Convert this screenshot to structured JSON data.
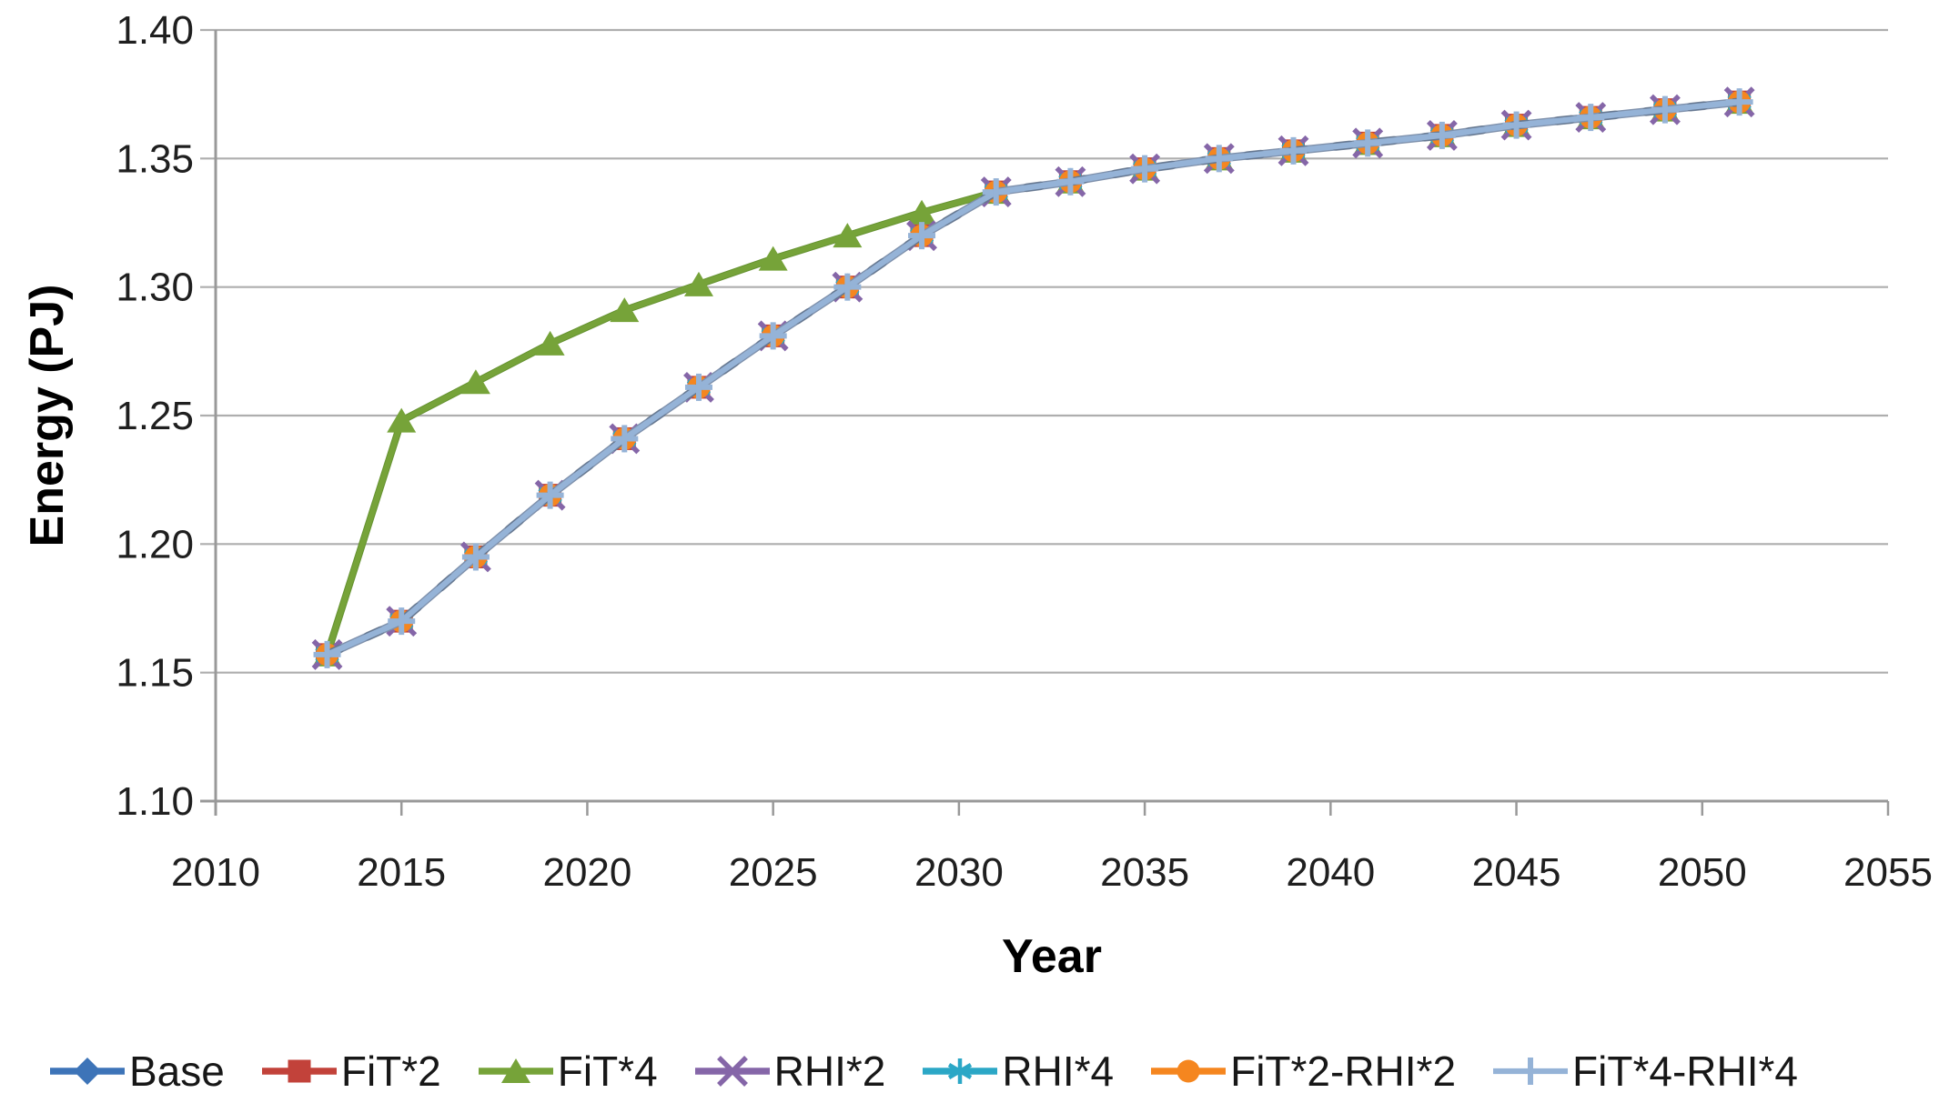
{
  "background": "#ffffff",
  "axis_style": {
    "axis_color": "#999999",
    "grid_color": "#aeaeae",
    "tick_label_color": "#1f1f1f"
  },
  "chart_data": {
    "type": "line",
    "title": "",
    "xlabel": "Year",
    "ylabel": "Energy (PJ)",
    "xlim": [
      2010,
      2055
    ],
    "ylim": [
      1.1,
      1.4
    ],
    "x_ticks": [
      2010,
      2015,
      2020,
      2025,
      2030,
      2035,
      2040,
      2045,
      2050,
      2055
    ],
    "y_ticks": [
      1.1,
      1.15,
      1.2,
      1.25,
      1.3,
      1.35,
      1.4
    ],
    "y_tick_decimals": 2,
    "grid": "horizontal",
    "legend_position": "bottom",
    "x": [
      2013,
      2015,
      2017,
      2019,
      2021,
      2023,
      2025,
      2027,
      2029,
      2031,
      2033,
      2035,
      2037,
      2039,
      2041,
      2043,
      2045,
      2047,
      2049,
      2051
    ],
    "series": [
      {
        "name": "Base",
        "color": "#3d74b8",
        "marker": "diamond",
        "values": [
          1.157,
          1.17,
          1.195,
          1.219,
          1.241,
          1.261,
          1.281,
          1.3,
          1.32,
          1.337,
          1.341,
          1.346,
          1.35,
          1.353,
          1.356,
          1.359,
          1.363,
          1.366,
          1.369,
          1.372
        ]
      },
      {
        "name": "FiT*2",
        "color": "#c2423a",
        "marker": "square",
        "values": [
          1.157,
          1.17,
          1.195,
          1.219,
          1.241,
          1.261,
          1.281,
          1.3,
          1.32,
          1.337,
          1.341,
          1.346,
          1.35,
          1.353,
          1.356,
          1.359,
          1.363,
          1.366,
          1.369,
          1.372
        ]
      },
      {
        "name": "FiT*4",
        "color": "#76a339",
        "marker": "triangle",
        "values": [
          1.157,
          1.248,
          1.263,
          1.278,
          1.291,
          1.301,
          1.311,
          1.32,
          1.329,
          1.337,
          1.341,
          1.346,
          1.35,
          1.353,
          1.356,
          1.359,
          1.363,
          1.366,
          1.369,
          1.372
        ]
      },
      {
        "name": "RHI*2",
        "color": "#8566a8",
        "marker": "x",
        "values": [
          1.157,
          1.17,
          1.195,
          1.219,
          1.241,
          1.261,
          1.281,
          1.3,
          1.32,
          1.337,
          1.341,
          1.346,
          1.35,
          1.353,
          1.356,
          1.359,
          1.363,
          1.366,
          1.369,
          1.372
        ]
      },
      {
        "name": "RHI*4",
        "color": "#2ba7c6",
        "marker": "asterisk",
        "values": [
          1.157,
          1.17,
          1.195,
          1.219,
          1.241,
          1.261,
          1.281,
          1.3,
          1.32,
          1.337,
          1.341,
          1.346,
          1.35,
          1.353,
          1.356,
          1.359,
          1.363,
          1.366,
          1.369,
          1.372
        ]
      },
      {
        "name": "FiT*2-RHI*2",
        "color": "#f5861f",
        "marker": "circle",
        "values": [
          1.157,
          1.17,
          1.195,
          1.219,
          1.241,
          1.261,
          1.281,
          1.3,
          1.32,
          1.337,
          1.341,
          1.346,
          1.35,
          1.353,
          1.356,
          1.359,
          1.363,
          1.366,
          1.369,
          1.372
        ]
      },
      {
        "name": "FiT*4-RHI*4",
        "color": "#95b3d7",
        "marker": "plus",
        "values": [
          1.157,
          1.17,
          1.195,
          1.219,
          1.241,
          1.261,
          1.281,
          1.3,
          1.32,
          1.337,
          1.341,
          1.346,
          1.35,
          1.353,
          1.356,
          1.359,
          1.363,
          1.366,
          1.369,
          1.372
        ]
      }
    ]
  }
}
